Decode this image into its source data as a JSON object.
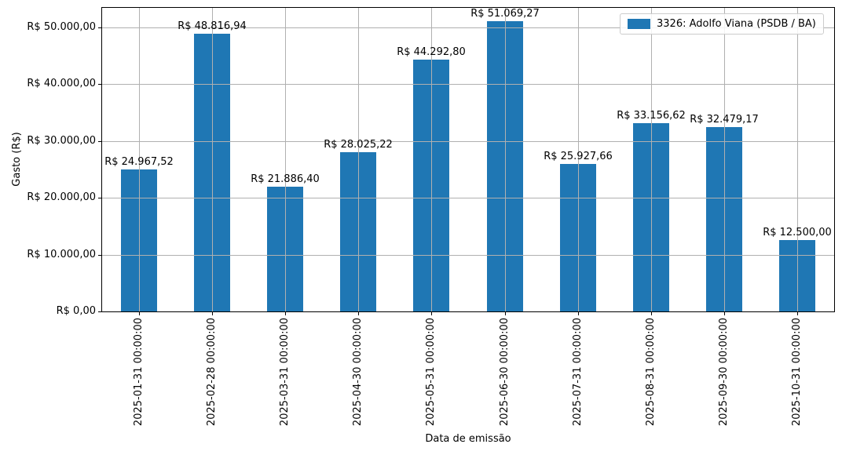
{
  "chart_data": {
    "type": "bar",
    "title": "",
    "xlabel": "Data de emissão",
    "ylabel": "Gasto (R$)",
    "categories": [
      "2025-01-31 00:00:00",
      "2025-02-28 00:00:00",
      "2025-03-31 00:00:00",
      "2025-04-30 00:00:00",
      "2025-05-31 00:00:00",
      "2025-06-30 00:00:00",
      "2025-07-31 00:00:00",
      "2025-08-31 00:00:00",
      "2025-09-30 00:00:00",
      "2025-10-31 00:00:00"
    ],
    "values": [
      24967.52,
      48816.94,
      21886.4,
      28025.22,
      44292.8,
      51069.27,
      25927.66,
      33156.62,
      32479.17,
      12500.0
    ],
    "bar_labels": [
      "R$ 24.967,52",
      "R$ 48.816,94",
      "R$ 21.886,40",
      "R$ 28.025,22",
      "R$ 44.292,80",
      "R$ 51.069,27",
      "R$ 25.927,66",
      "R$ 33.156,62",
      "R$ 32.479,17",
      "R$ 12.500,00"
    ],
    "y_tick_values": [
      0,
      10000,
      20000,
      30000,
      40000,
      50000
    ],
    "y_tick_labels": [
      "R$ 0,00",
      "R$ 10.000,00",
      "R$ 20.000,00",
      "R$ 30.000,00",
      "R$ 40.000,00",
      "R$ 50.000,00"
    ],
    "ylim": [
      0,
      53400
    ],
    "grid": true,
    "legend": {
      "position": "upper-right",
      "entries": [
        {
          "label": "3326: Adolfo Viana (PSDB / BA)",
          "color": "#1f77b4"
        }
      ]
    },
    "colors": {
      "bar": "#1f77b4",
      "grid": "#b0b0b0",
      "spine": "#000000",
      "text": "#000000",
      "legend_border": "#cccccc",
      "background": "#ffffff"
    }
  }
}
